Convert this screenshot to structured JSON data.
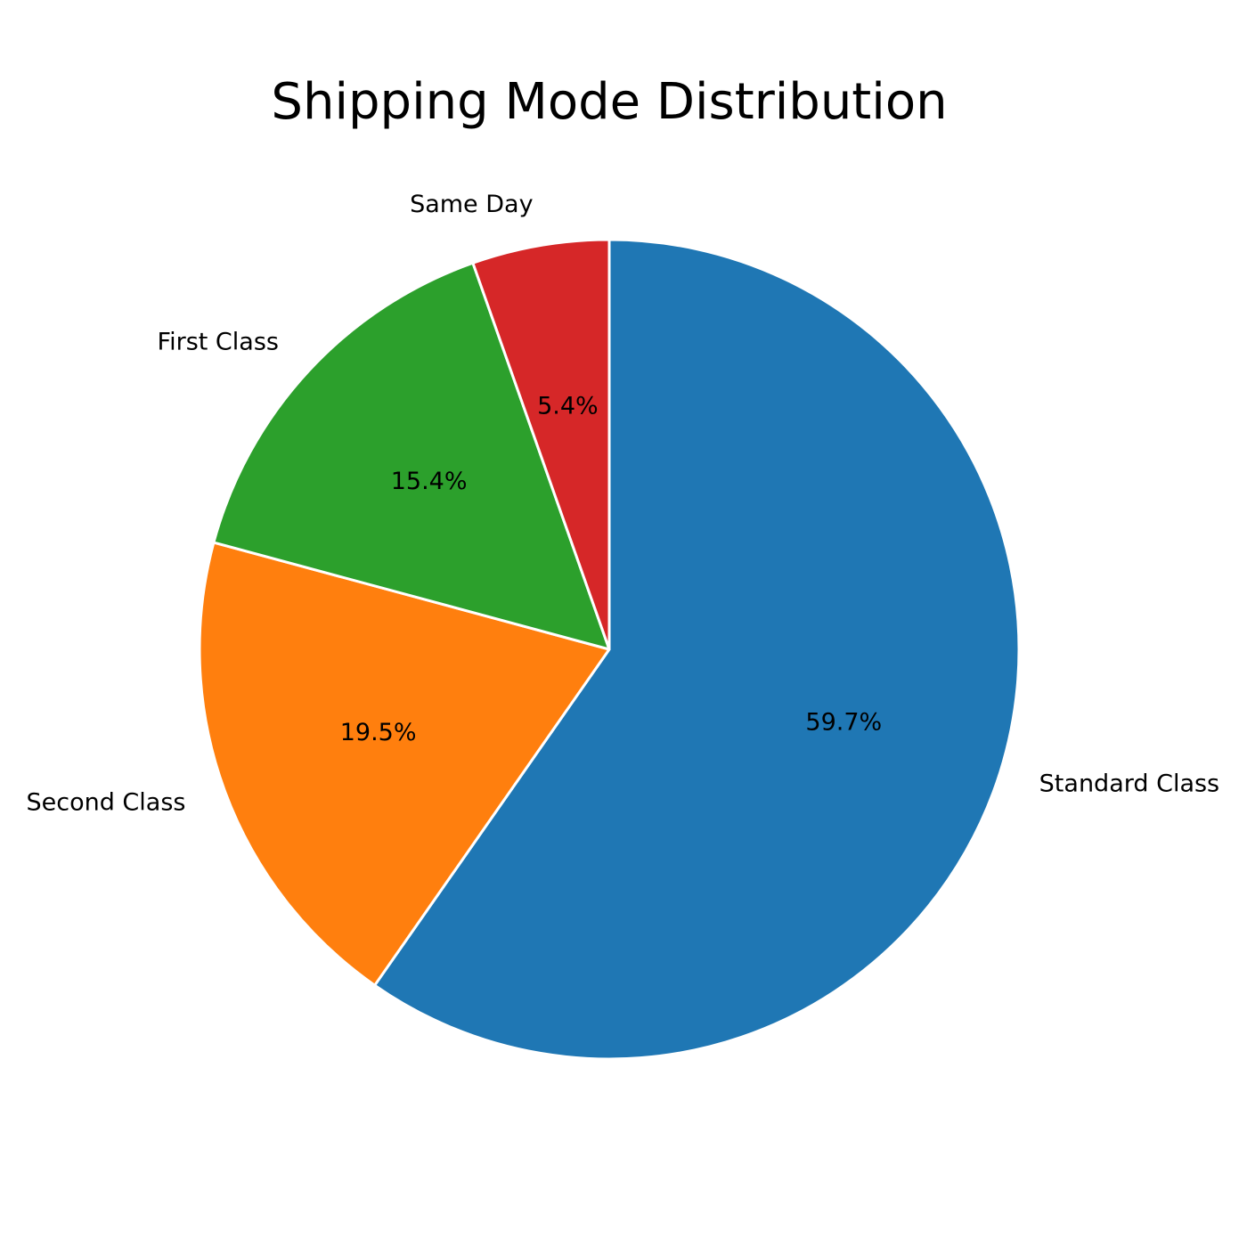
{
  "chart_data": {
    "type": "pie",
    "title": "Shipping Mode Distribution",
    "slices": [
      {
        "label": "Standard Class",
        "value": 59.7,
        "pct_label": "59.7%",
        "color": "#1f77b4"
      },
      {
        "label": "Second Class",
        "value": 19.5,
        "pct_label": "19.5%",
        "color": "#ff7f0e"
      },
      {
        "label": "First Class",
        "value": 15.4,
        "pct_label": "15.4%",
        "color": "#2ca02c"
      },
      {
        "label": "Same Day",
        "value": 5.4,
        "pct_label": "5.4%",
        "color": "#d62728"
      }
    ],
    "start_angle_deg": 90,
    "direction": "clockwise",
    "edge_color": "#ffffff",
    "legend": "none"
  }
}
